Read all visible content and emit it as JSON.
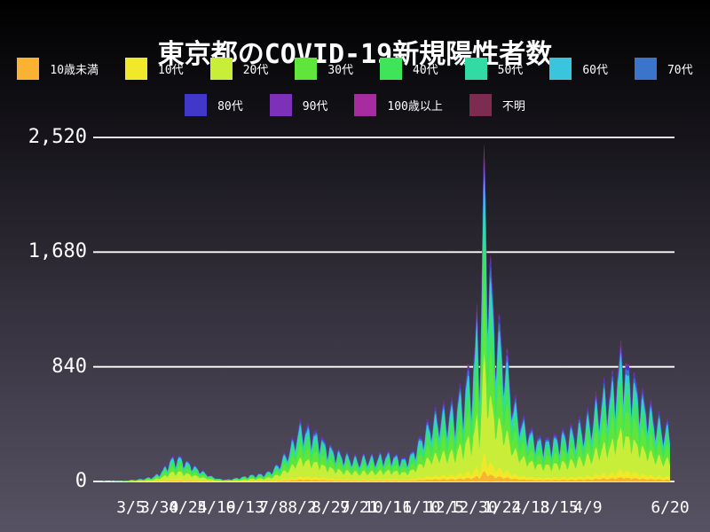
{
  "title": "東京都のCOVID-19新規陽性者数",
  "colors": {
    "text": "#ffffff",
    "gridline": "#ffffff",
    "background_top": "#000000",
    "background_bottom": "#575263"
  },
  "legend": {
    "rows": [
      [
        {
          "label": "10歳未満",
          "color": "#F9B232"
        },
        {
          "label": "10代",
          "color": "#F0E828"
        },
        {
          "label": "20代",
          "color": "#C8EE3A"
        },
        {
          "label": "30代",
          "color": "#5FE53C"
        },
        {
          "label": "40代",
          "color": "#3EE55A"
        },
        {
          "label": "50代",
          "color": "#33DBA4"
        },
        {
          "label": "60代",
          "color": "#38C5DD"
        },
        {
          "label": "70代",
          "color": "#3A75CB"
        }
      ],
      [
        {
          "label": "80代",
          "color": "#4138C9"
        },
        {
          "label": "90代",
          "color": "#7D30B8"
        },
        {
          "label": "100歳以上",
          "color": "#A62CA0"
        },
        {
          "label": "不明",
          "color": "#7D2B50"
        }
      ]
    ]
  },
  "chart_data": {
    "type": "area",
    "stacked": true,
    "title": "東京都のCOVID-19新規陽性者数",
    "ylim": [
      0,
      2520
    ],
    "grid": true,
    "legend_position": "top",
    "y_ticks": [
      {
        "label": "0",
        "value": 0
      },
      {
        "label": "840",
        "value": 840
      },
      {
        "label": "1,680",
        "value": 1680
      },
      {
        "label": "2,520",
        "value": 2520
      }
    ],
    "x_ticks": [
      {
        "label": "3/5",
        "day": 33
      },
      {
        "label": "3/30",
        "day": 58
      },
      {
        "label": "4/24",
        "day": 83
      },
      {
        "label": "5/19",
        "day": 108
      },
      {
        "label": "6/13",
        "day": 133
      },
      {
        "label": "7/8",
        "day": 158
      },
      {
        "label": "8/2",
        "day": 183
      },
      {
        "label": "8/27",
        "day": 208
      },
      {
        "label": "9/21",
        "day": 233
      },
      {
        "label": "10/16",
        "day": 258
      },
      {
        "label": "11/10",
        "day": 283
      },
      {
        "label": "12/5",
        "day": 308
      },
      {
        "label": "12/30",
        "day": 333
      },
      {
        "label": "1/24",
        "day": 358
      },
      {
        "label": "2/18",
        "day": 383
      },
      {
        "label": "3/15",
        "day": 408
      },
      {
        "label": "4/9",
        "day": 433
      },
      {
        "label": "6/20",
        "day": 505
      }
    ],
    "days_total": 505,
    "series": [
      {
        "name": "10歳未満",
        "color": "#F9B232",
        "share": 0.03
      },
      {
        "name": "10代",
        "color": "#F0E828",
        "share": 0.055
      },
      {
        "name": "20代",
        "color": "#C8EE3A",
        "share": 0.295
      },
      {
        "name": "30代",
        "color": "#5FE53C",
        "share": 0.2
      },
      {
        "name": "40代",
        "color": "#3EE55A",
        "share": 0.15
      },
      {
        "name": "50代",
        "color": "#33DBA4",
        "share": 0.11
      },
      {
        "name": "60代",
        "color": "#38C5DD",
        "share": 0.06
      },
      {
        "name": "70代",
        "color": "#3A75CB",
        "share": 0.045
      },
      {
        "name": "80代",
        "color": "#4138C9",
        "share": 0.03
      },
      {
        "name": "90代",
        "color": "#7D30B8",
        "share": 0.015
      },
      {
        "name": "100歳以上",
        "color": "#A62CA0",
        "share": 0.002
      },
      {
        "name": "不明",
        "color": "#7D2B50",
        "share": 0.008
      }
    ],
    "weekly_pattern": [
      0.58,
      0.7,
      0.88,
      0.97,
      1.0,
      0.93,
      0.78
    ],
    "weekly_phase": 5,
    "total_envelope": [
      [
        0,
        0
      ],
      [
        8,
        0
      ],
      [
        10,
        4
      ],
      [
        11,
        0
      ],
      [
        15,
        0
      ],
      [
        16,
        5
      ],
      [
        17,
        0
      ],
      [
        24,
        2
      ],
      [
        28,
        6
      ],
      [
        33,
        12
      ],
      [
        40,
        18
      ],
      [
        47,
        28
      ],
      [
        54,
        45
      ],
      [
        61,
        95
      ],
      [
        68,
        185
      ],
      [
        75,
        205
      ],
      [
        82,
        165
      ],
      [
        89,
        125
      ],
      [
        96,
        85
      ],
      [
        103,
        45
      ],
      [
        110,
        22
      ],
      [
        117,
        15
      ],
      [
        124,
        26
      ],
      [
        131,
        38
      ],
      [
        138,
        52
      ],
      [
        145,
        58
      ],
      [
        152,
        72
      ],
      [
        159,
        115
      ],
      [
        166,
        195
      ],
      [
        173,
        295
      ],
      [
        179,
        440
      ],
      [
        183,
        470
      ],
      [
        190,
        430
      ],
      [
        197,
        390
      ],
      [
        204,
        310
      ],
      [
        211,
        260
      ],
      [
        218,
        225
      ],
      [
        225,
        205
      ],
      [
        232,
        185
      ],
      [
        239,
        205
      ],
      [
        246,
        195
      ],
      [
        253,
        215
      ],
      [
        260,
        225
      ],
      [
        267,
        205
      ],
      [
        274,
        185
      ],
      [
        281,
        265
      ],
      [
        288,
        395
      ],
      [
        295,
        505
      ],
      [
        302,
        565
      ],
      [
        309,
        585
      ],
      [
        316,
        605
      ],
      [
        323,
        740
      ],
      [
        330,
        890
      ],
      [
        334,
        1010
      ],
      [
        336,
        1340
      ],
      [
        338,
        1150
      ],
      [
        340,
        1550
      ],
      [
        342,
        2520
      ],
      [
        344,
        2270
      ],
      [
        347,
        1820
      ],
      [
        349,
        1520
      ],
      [
        354,
        1270
      ],
      [
        361,
        1060
      ],
      [
        368,
        680
      ],
      [
        375,
        520
      ],
      [
        382,
        430
      ],
      [
        389,
        360
      ],
      [
        396,
        340
      ],
      [
        403,
        355
      ],
      [
        410,
        385
      ],
      [
        417,
        405
      ],
      [
        424,
        445
      ],
      [
        431,
        490
      ],
      [
        438,
        580
      ],
      [
        445,
        720
      ],
      [
        452,
        760
      ],
      [
        459,
        910
      ],
      [
        463,
        1120
      ],
      [
        466,
        960
      ],
      [
        473,
        860
      ],
      [
        480,
        710
      ],
      [
        487,
        610
      ],
      [
        494,
        510
      ],
      [
        501,
        460
      ],
      [
        505,
        415
      ]
    ]
  }
}
